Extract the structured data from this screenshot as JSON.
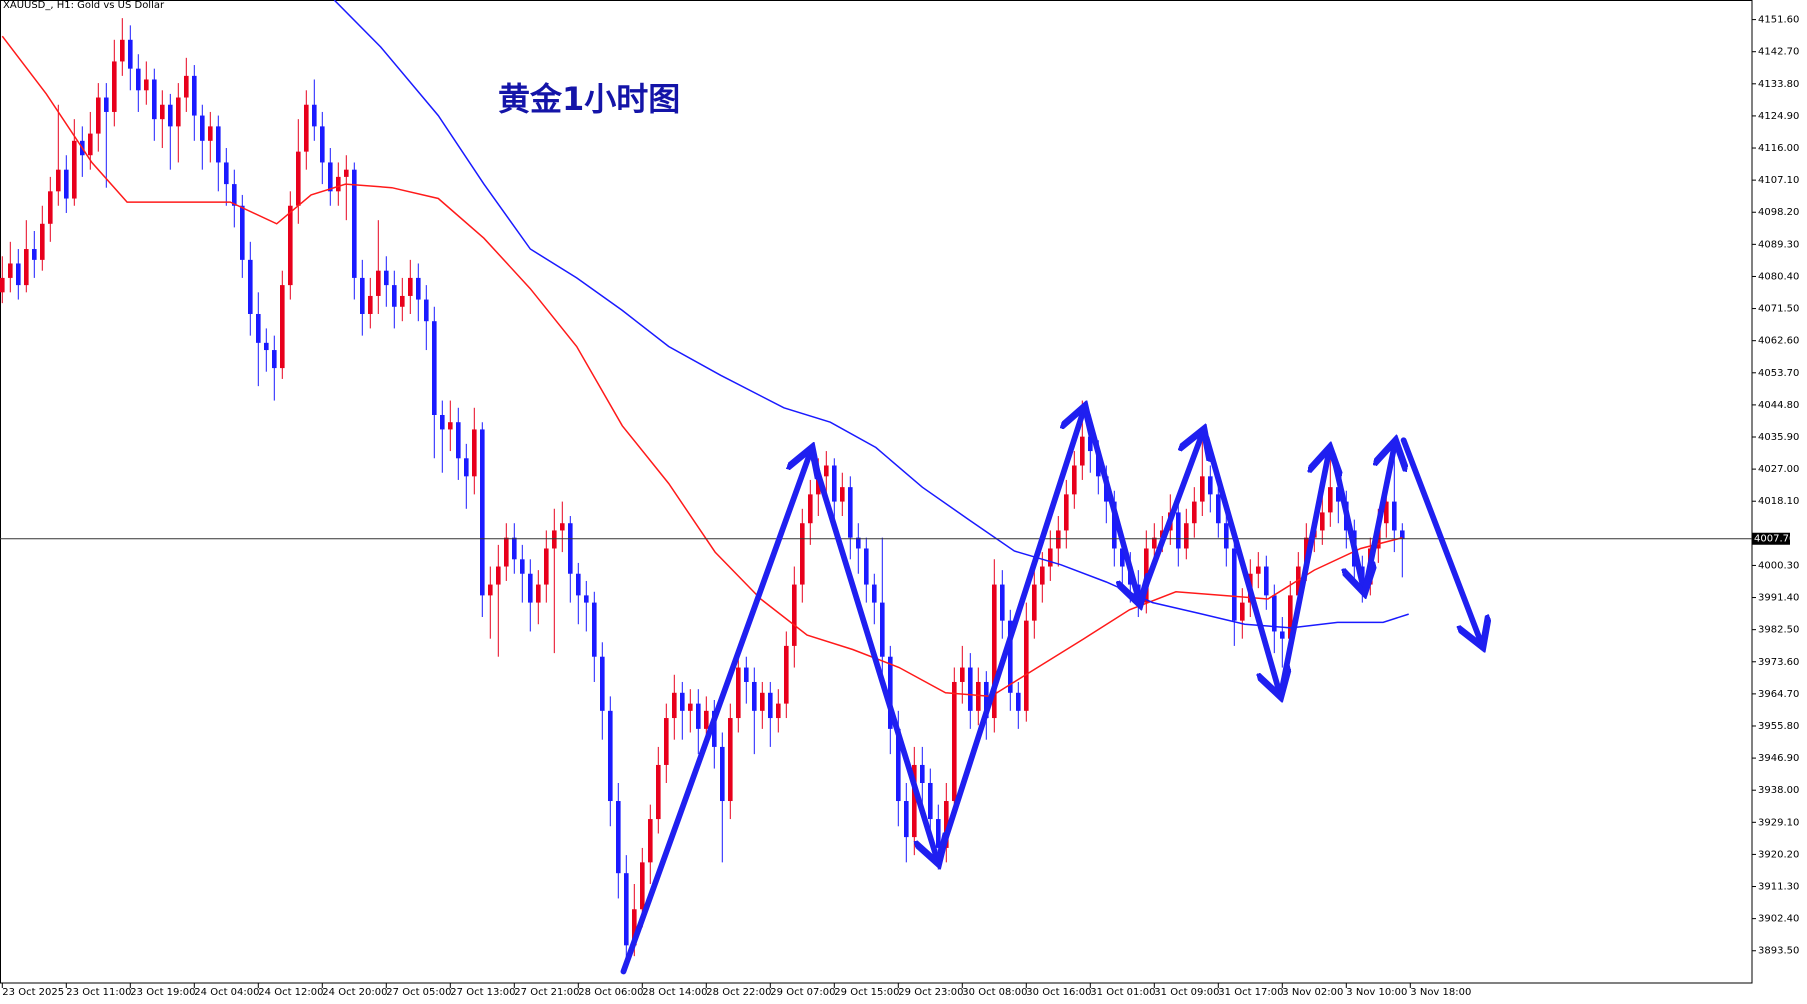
{
  "chart_data": {
    "type": "candlestick",
    "title": "XAUUSD_, H1:  Gold vs US Dollar",
    "annotation": "黄金1小时图",
    "up_color": "#e8001c",
    "down_color": "#1a1aff",
    "ylim": [
      3884.56,
      4157.03
    ],
    "yticks": [
      {
        "value": 4151.6,
        "label": "4151.60"
      },
      {
        "value": 4142.7,
        "label": "4142.70"
      },
      {
        "value": 4133.8,
        "label": "4133.80"
      },
      {
        "value": 4124.9,
        "label": "4124.90"
      },
      {
        "value": 4116,
        "label": "4116.00"
      },
      {
        "value": 4107.1,
        "label": "4107.10"
      },
      {
        "value": 4098.2,
        "label": "4098.20"
      },
      {
        "value": 4089.3,
        "label": "4089.30"
      },
      {
        "value": 4080.4,
        "label": "4080.40"
      },
      {
        "value": 4071.5,
        "label": "4071.50"
      },
      {
        "value": 4062.6,
        "label": "4062.60"
      },
      {
        "value": 4053.7,
        "label": "4053.70"
      },
      {
        "value": 4044.8,
        "label": "4044.80"
      },
      {
        "value": 4035.9,
        "label": "4035.90"
      },
      {
        "value": 4027,
        "label": "4027.00"
      },
      {
        "value": 4018.1,
        "label": "4018.10"
      },
      {
        "value": 4000.3,
        "label": "4000.30"
      },
      {
        "value": 3991.4,
        "label": "3991.40"
      },
      {
        "value": 3982.5,
        "label": "3982.50"
      },
      {
        "value": 3973.6,
        "label": "3973.60"
      },
      {
        "value": 3964.7,
        "label": "3964.70"
      },
      {
        "value": 3955.8,
        "label": "3955.80"
      },
      {
        "value": 3946.9,
        "label": "3946.90"
      },
      {
        "value": 3938,
        "label": "3938.00"
      },
      {
        "value": 3929.1,
        "label": "3929.10"
      },
      {
        "value": 3920.2,
        "label": "3920.20"
      },
      {
        "value": 3911.3,
        "label": "3911.30"
      },
      {
        "value": 3902.4,
        "label": "3902.40"
      },
      {
        "value": 3893.5,
        "label": "3893.50"
      }
    ],
    "current_price": {
      "value": 4007.7,
      "label": "4007.70"
    },
    "categories": [
      "23 Oct 2025",
      "23 Oct 11:00",
      "23 Oct 19:00",
      "24 Oct 04:00",
      "24 Oct 12:00",
      "24 Oct 20:00",
      "27 Oct 05:00",
      "27 Oct 13:00",
      "27 Oct 21:00",
      "28 Oct 06:00",
      "28 Oct 14:00",
      "28 Oct 22:00",
      "29 Oct 07:00",
      "29 Oct 15:00",
      "29 Oct 23:00",
      "30 Oct 08:00",
      "30 Oct 16:00",
      "31 Oct 01:00",
      "31 Oct 09:00",
      "31 Oct 17:00",
      "3 Nov 02:00",
      "3 Nov 10:00",
      "3 Nov 18:00"
    ],
    "candles": [
      [
        4076,
        4086,
        4073,
        4080
      ],
      [
        4080,
        4090,
        4076,
        4084
      ],
      [
        4084,
        4088,
        4074,
        4078
      ],
      [
        4078,
        4096,
        4076,
        4088
      ],
      [
        4088,
        4093,
        4080,
        4085
      ],
      [
        4085,
        4100,
        4082,
        4095
      ],
      [
        4095,
        4108,
        4090,
        4104
      ],
      [
        4104,
        4128,
        4100,
        4110
      ],
      [
        4110,
        4114,
        4098,
        4102
      ],
      [
        4102,
        4124,
        4100,
        4118
      ],
      [
        4118,
        4122,
        4108,
        4114
      ],
      [
        4114,
        4126,
        4110,
        4120
      ],
      [
        4120,
        4134,
        4115,
        4130
      ],
      [
        4130,
        4134,
        4105,
        4126
      ],
      [
        4126,
        4146,
        4122,
        4140
      ],
      [
        4140,
        4152,
        4136,
        4146
      ],
      [
        4146,
        4150,
        4132,
        4138
      ],
      [
        4138,
        4142,
        4126,
        4132
      ],
      [
        4132,
        4140,
        4128,
        4135
      ],
      [
        4135,
        4138,
        4118,
        4124
      ],
      [
        4124,
        4132,
        4116,
        4128
      ],
      [
        4128,
        4131,
        4110,
        4122
      ],
      [
        4122,
        4134,
        4112,
        4130
      ],
      [
        4130,
        4141,
        4126,
        4136
      ],
      [
        4136,
        4139,
        4118,
        4125
      ],
      [
        4125,
        4128,
        4110,
        4118
      ],
      [
        4118,
        4126,
        4112,
        4122
      ],
      [
        4122,
        4125,
        4104,
        4112
      ],
      [
        4112,
        4116,
        4100,
        4106
      ],
      [
        4106,
        4110,
        4094,
        4100
      ],
      [
        4100,
        4103,
        4080,
        4085
      ],
      [
        4085,
        4090,
        4064,
        4070
      ],
      [
        4070,
        4076,
        4050,
        4062
      ],
      [
        4062,
        4066,
        4054,
        4060
      ],
      [
        4060,
        4064,
        4046,
        4055
      ],
      [
        4055,
        4082,
        4052,
        4078
      ],
      [
        4078,
        4104,
        4074,
        4100
      ],
      [
        4100,
        4124,
        4095,
        4115
      ],
      [
        4115,
        4132,
        4110,
        4128
      ],
      [
        4128,
        4135,
        4118,
        4122
      ],
      [
        4122,
        4126,
        4106,
        4112
      ],
      [
        4112,
        4116,
        4100,
        4104
      ],
      [
        4104,
        4112,
        4100,
        4108
      ],
      [
        4108,
        4114,
        4096,
        4110
      ],
      [
        4110,
        4112,
        4074,
        4080
      ],
      [
        4080,
        4085,
        4064,
        4070
      ],
      [
        4070,
        4080,
        4066,
        4075
      ],
      [
        4075,
        4096,
        4070,
        4082
      ],
      [
        4082,
        4086,
        4072,
        4078
      ],
      [
        4078,
        4082,
        4066,
        4072
      ],
      [
        4072,
        4080,
        4068,
        4075
      ],
      [
        4075,
        4085,
        4070,
        4080
      ],
      [
        4080,
        4084,
        4068,
        4074
      ],
      [
        4074,
        4078,
        4060,
        4068
      ],
      [
        4068,
        4072,
        4030,
        4042
      ],
      [
        4042,
        4046,
        4026,
        4038
      ],
      [
        4038,
        4046,
        4032,
        4040
      ],
      [
        4040,
        4044,
        4024,
        4030
      ],
      [
        4030,
        4034,
        4016,
        4025
      ],
      [
        4025,
        4044,
        4020,
        4038
      ],
      [
        4038,
        4040,
        3986,
        3992
      ],
      [
        3992,
        4000,
        3980,
        3995
      ],
      [
        3995,
        4006,
        3975,
        4000
      ],
      [
        4000,
        4012,
        3996,
        4008
      ],
      [
        4008,
        4012,
        3998,
        4002
      ],
      [
        4002,
        4006,
        3990,
        3998
      ],
      [
        3998,
        4002,
        3982,
        3990
      ],
      [
        3990,
        3999,
        3984,
        3995
      ],
      [
        3995,
        4010,
        3990,
        4005
      ],
      [
        4005,
        4016,
        3976,
        4010
      ],
      [
        4010,
        4018,
        4004,
        4012
      ],
      [
        4012,
        4014,
        3990,
        3998
      ],
      [
        3998,
        4001,
        3984,
        3992
      ],
      [
        3992,
        3996,
        3982,
        3990
      ],
      [
        3990,
        3993,
        3968,
        3975
      ],
      [
        3975,
        3979,
        3952,
        3960
      ],
      [
        3960,
        3964,
        3928,
        3935
      ],
      [
        3935,
        3940,
        3908,
        3915
      ],
      [
        3915,
        3920,
        3890,
        3895
      ],
      [
        3895,
        3912,
        3892,
        3905
      ],
      [
        3905,
        3922,
        3900,
        3918
      ],
      [
        3918,
        3934,
        3912,
        3930
      ],
      [
        3930,
        3950,
        3926,
        3945
      ],
      [
        3945,
        3962,
        3940,
        3958
      ],
      [
        3958,
        3970,
        3952,
        3965
      ],
      [
        3965,
        3968,
        3952,
        3960
      ],
      [
        3960,
        3966,
        3954,
        3962
      ],
      [
        3962,
        3966,
        3948,
        3955
      ],
      [
        3955,
        3964,
        3950,
        3960
      ],
      [
        3960,
        3963,
        3944,
        3950
      ],
      [
        3950,
        3954,
        3918,
        3935
      ],
      [
        3935,
        3962,
        3930,
        3958
      ],
      [
        3958,
        3976,
        3954,
        3972
      ],
      [
        3972,
        3975,
        3962,
        3968
      ],
      [
        3968,
        3972,
        3948,
        3960
      ],
      [
        3960,
        3968,
        3955,
        3965
      ],
      [
        3965,
        3968,
        3950,
        3958
      ],
      [
        3958,
        3966,
        3954,
        3962
      ],
      [
        3962,
        3982,
        3958,
        3978
      ],
      [
        3978,
        4000,
        3972,
        3995
      ],
      [
        3995,
        4016,
        3990,
        4012
      ],
      [
        4012,
        4024,
        4006,
        4020
      ],
      [
        4020,
        4030,
        4014,
        4025
      ],
      [
        4025,
        4032,
        4020,
        4028
      ],
      [
        4028,
        4030,
        4012,
        4018
      ],
      [
        4018,
        4026,
        4014,
        4022
      ],
      [
        4022,
        4025,
        4002,
        4008
      ],
      [
        4008,
        4012,
        3998,
        4005
      ],
      [
        4005,
        4008,
        3990,
        3995
      ],
      [
        3995,
        3998,
        3984,
        3990
      ],
      [
        3990,
        4008,
        3968,
        3975
      ],
      [
        3975,
        3978,
        3948,
        3955
      ],
      [
        3955,
        3960,
        3928,
        3935
      ],
      [
        3935,
        3940,
        3918,
        3925
      ],
      [
        3925,
        3950,
        3920,
        3945
      ],
      [
        3945,
        3950,
        3934,
        3940
      ],
      [
        3940,
        3944,
        3925,
        3930
      ],
      [
        3930,
        3934,
        3916,
        3922
      ],
      [
        3922,
        3940,
        3918,
        3935
      ],
      [
        3935,
        3972,
        3930,
        3968
      ],
      [
        3968,
        3978,
        3962,
        3972
      ],
      [
        3972,
        3976,
        3955,
        3960
      ],
      [
        3960,
        3972,
        3956,
        3968
      ],
      [
        3968,
        3971,
        3952,
        3958
      ],
      [
        3958,
        4002,
        3954,
        3995
      ],
      [
        3995,
        3999,
        3980,
        3985
      ],
      [
        3985,
        3988,
        3960,
        3965
      ],
      [
        3965,
        3968,
        3955,
        3960
      ],
      [
        3960,
        3990,
        3957,
        3985
      ],
      [
        3985,
        4000,
        3980,
        3995
      ],
      [
        3995,
        4004,
        3990,
        4000
      ],
      [
        4000,
        4010,
        3996,
        4005
      ],
      [
        4005,
        4014,
        4000,
        4010
      ],
      [
        4010,
        4024,
        4005,
        4020
      ],
      [
        4020,
        4032,
        4016,
        4028
      ],
      [
        4028,
        4046,
        4024,
        4036
      ],
      [
        4036,
        4040,
        4026,
        4032
      ],
      [
        4032,
        4035,
        4020,
        4025
      ],
      [
        4025,
        4028,
        4012,
        4018
      ],
      [
        4018,
        4021,
        4000,
        4005
      ],
      [
        4005,
        4008,
        3994,
        4000
      ],
      [
        4000,
        4004,
        3990,
        3995
      ],
      [
        3995,
        3999,
        3986,
        3990
      ],
      [
        3990,
        4010,
        3987,
        4005
      ],
      [
        4005,
        4012,
        4001,
        4008
      ],
      [
        4008,
        4014,
        4004,
        4010
      ],
      [
        4010,
        4020,
        4006,
        4015
      ],
      [
        4015,
        4018,
        4000,
        4005
      ],
      [
        4005,
        4016,
        4002,
        4012
      ],
      [
        4012,
        4022,
        4008,
        4018
      ],
      [
        4018,
        4036,
        4014,
        4025
      ],
      [
        4025,
        4028,
        4015,
        4020
      ],
      [
        4020,
        4023,
        4008,
        4012
      ],
      [
        4012,
        4015,
        4000,
        4005
      ],
      [
        4005,
        4008,
        3978,
        3985
      ],
      [
        3985,
        3994,
        3980,
        3990
      ],
      [
        3990,
        4002,
        3986,
        3998
      ],
      [
        3998,
        4004,
        3994,
        4000
      ],
      [
        4000,
        4003,
        3988,
        3992
      ],
      [
        3992,
        3995,
        3976,
        3982
      ],
      [
        3982,
        3986,
        3972,
        3980
      ],
      [
        3980,
        3996,
        3976,
        3992
      ],
      [
        3992,
        4004,
        3988,
        4000
      ],
      [
        4000,
        4012,
        3996,
        4008
      ],
      [
        4008,
        4014,
        4004,
        4010
      ],
      [
        4010,
        4020,
        4006,
        4015
      ],
      [
        4015,
        4030,
        4011,
        4022
      ],
      [
        4022,
        4025,
        4012,
        4018
      ],
      [
        4018,
        4021,
        4005,
        4010
      ],
      [
        4010,
        4013,
        3996,
        4000
      ],
      [
        4000,
        4003,
        3990,
        3995
      ],
      [
        3995,
        4008,
        3992,
        4005
      ],
      [
        4005,
        4016,
        4001,
        4012
      ],
      [
        4012,
        4024,
        4008,
        4018
      ],
      [
        4018,
        4030,
        4004,
        4010
      ],
      [
        4010,
        4012,
        3997,
        4007.7
      ]
    ],
    "lines": [
      {
        "color": "#ff1a1a",
        "x": [
          0,
          5.5,
          11.2,
          15.6,
          21.3,
          28.5,
          34.3,
          38.6,
          42.9,
          48.7,
          54.5,
          60.2,
          66,
          71.8,
          77.5,
          83.3,
          89.1,
          94.8,
          100.6,
          106.3,
          112.1,
          117.9,
          123.6,
          129.4,
          135.2,
          140.9,
          146.7,
          152.5,
          158.2,
          164,
          169.8,
          175
        ],
        "values": [
          4147,
          4131,
          4112,
          4101,
          4101,
          4101,
          4095,
          4103,
          4106,
          4105,
          4102,
          4091,
          4077,
          4061,
          4039,
          4023,
          4004,
          3991,
          3981,
          3977,
          3972,
          3965,
          3964,
          3972,
          3980,
          3988,
          3993,
          3992,
          3991,
          3999,
          4005,
          4008
        ]
      },
      {
        "color": "#1a1aff",
        "x": [
          41.5,
          47.3,
          54.5,
          60.2,
          66,
          71.8,
          77.5,
          83.3,
          89.8,
          97.7,
          103.5,
          109.2,
          115,
          120.8,
          126.5,
          132.3,
          138,
          143.8,
          149.6,
          155.3,
          161.1,
          166.9,
          172.6,
          175.8
        ],
        "values": [
          4157,
          4144,
          4125,
          4106,
          4088,
          4080,
          4071,
          4061,
          4053,
          4044,
          4040,
          4033,
          4022,
          4013,
          4004.3,
          4000.5,
          3995.7,
          3990,
          3987,
          3984,
          3983,
          3984.5,
          3984.5,
          3986.8
        ]
      }
    ]
  }
}
